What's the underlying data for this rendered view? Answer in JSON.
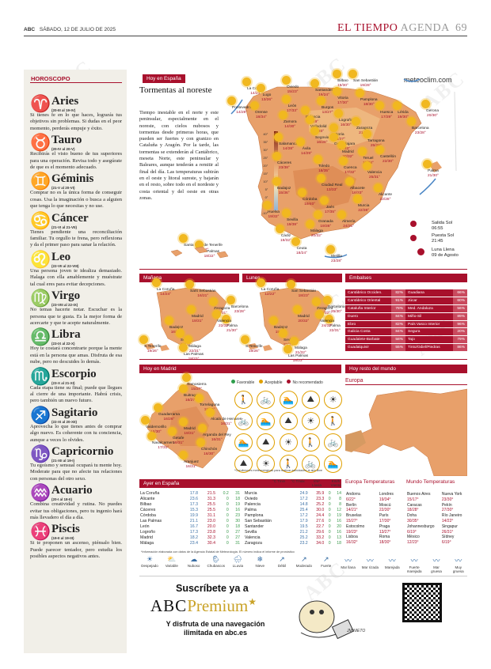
{
  "header": {
    "abc": "ABC",
    "date": "SÁBADO, 12 DE JULIO DE 2025",
    "section": "EL TIEMPO",
    "subsection": "AGENDA",
    "page": "69"
  },
  "horoscope": {
    "label": "HOROSCOPO",
    "signs": [
      {
        "symbol": "♈",
        "name": "Aries",
        "dates": "(20-III al 19-IV)",
        "text": "Si tienes fe en lo que haces, lograrás tus objetivos sin problemas. Si dudas en el peor momento, perderás empuje y éxito."
      },
      {
        "symbol": "♉",
        "name": "Tauro",
        "dates": "(20-IV al 20-V)",
        "text": "Recibirás el visto bueno de tus superiores para una operación. Revisa todo y asegúrate de que es el momento adecuado."
      },
      {
        "symbol": "♊",
        "name": "Géminis",
        "dates": "(21-V al 20-VI)",
        "text": "Comprar no es la única forma de conseguir cosas. Usa la imaginación o busca a alguien que tenga lo que necesitas y no use."
      },
      {
        "symbol": "♋",
        "name": "Cáncer",
        "dates": "(21-VI al 21-VII)",
        "text": "Tienes pendiente una reconciliación familiar. Tu orgullo te frena, pero reflexiona y da el primer paso para sanar la relación."
      },
      {
        "symbol": "♌",
        "name": "Leo",
        "dates": "(22-VII al 22-VIII)",
        "text": "Una persona joven te idealiza demasiado. Halaga con ella amablemente y muéstrate tal cual eres para evitar decepciones."
      },
      {
        "symbol": "♍",
        "name": "Virgo",
        "dates": "(23-VIII al 22-IX)",
        "text": "No temas hacerte notar. Escuchar es la persona que te gusta. Es la mejor forma de acercarte y que te acepte naturalmente."
      },
      {
        "symbol": "♎",
        "name": "Libra",
        "dates": "(23-IX al 22-X)",
        "text": "Hoy te costará concentrarte porque la mente está en la persona que amas. Disfruta de esa nube, pero no descuides lo demás."
      },
      {
        "symbol": "♏",
        "name": "Escorpio",
        "dates": "(23-X al 21-XI)",
        "text": "Cada etapa tiene su final; puede que llegues al cierre de una importante. Habrá crisis, pero también un nuevo futuro."
      },
      {
        "symbol": "♐",
        "name": "Sagitario",
        "dates": "(22-XI al 20-XII)",
        "text": "Aprovecha lo que tienes antes de comprar algo nuevo. Es coherente con tu conciencia, aunque a veces lo olvides."
      },
      {
        "symbol": "♑",
        "name": "Capricornio",
        "dates": "(21-XII al 19-I)",
        "text": "Tu egoísmo y sensual ocupará tu mente hoy. Moderate para que no afecte tus relaciones con personas del otro sexo."
      },
      {
        "symbol": "♒",
        "name": "Acuario",
        "dates": "(20-I al 18-II)",
        "text": "Combina creatividad y rutina. No puedes evitar tus obligaciones, pero tu ingenio hará más llevadero el día a día."
      },
      {
        "symbol": "♓",
        "name": "Piscis",
        "dates": "(19-II al 19-III)",
        "text": "Si te proponen un ascenso, piénsalo bien. Puede parecer tentador, pero estudia los posibles aspectos negativos antes."
      }
    ]
  },
  "spain": {
    "label": "Hoy en España",
    "site": "meteoclim.com",
    "title": "Tormentas al noreste",
    "body": "Tiempo inestable en el norte y este peninsular, especialmente en el noreste, con cielos nubosos y tormentas desde primeras horas, que pueden ser fuertes y con granizo en Cataluña y Aragón. Por la tarde, las tormentas se extenderán al Cantábrico, meseta Norte, este peninsular y Baleares, aunque tenderán a remitir al final del día. Las temperaturas subirán en el oeste y litoral sureste, y bajarán en el resto, sobre todo en el nordeste y costa oriental y del oeste en otras zonas.",
    "scale": [
      "40°",
      "35°",
      "30°",
      "25°",
      "20°",
      "15°",
      "10°",
      "5°",
      "0°",
      "-5°",
      "-10°"
    ],
    "cities": [
      {
        "n": "Oviedo",
        "t": "15/23°"
      },
      {
        "n": "Santander",
        "t": "16/24°"
      },
      {
        "n": "Bilbao",
        "t": "19/30°"
      },
      {
        "n": "San Sebastián",
        "t": "19/28°"
      },
      {
        "n": "La Coruña",
        "t": "14/24°"
      },
      {
        "n": "Lugo",
        "t": "13/26°"
      },
      {
        "n": "Pontevedra",
        "t": "14/29°"
      },
      {
        "n": "Orense",
        "t": "18/34°"
      },
      {
        "n": "León",
        "t": "17/33°"
      },
      {
        "n": "Burgos",
        "t": "13/27°"
      },
      {
        "n": "Vitoria",
        "t": "17/30°"
      },
      {
        "n": "Pamplona",
        "t": "18/30°"
      },
      {
        "n": "Huesca",
        "t": "17/29°"
      },
      {
        "n": "Lérida",
        "t": "19/30°"
      },
      {
        "n": "Gerona",
        "t": "20/30°"
      },
      {
        "n": "Palencia",
        "t": "14/29°"
      },
      {
        "n": "Logroño",
        "t": "16/30°"
      },
      {
        "n": "Zamora",
        "t": "14/30°"
      },
      {
        "n": "Valladolid",
        "t": "16/30°"
      },
      {
        "n": "Soria",
        "t": "15/27°"
      },
      {
        "n": "Zaragoza",
        "t": "21/31°"
      },
      {
        "n": "Barcelona",
        "t": "23/28°"
      },
      {
        "n": "Salamanca",
        "t": "14/28°"
      },
      {
        "n": "Segovia",
        "t": "16/28°"
      },
      {
        "n": "Guadalajara",
        "t": "17/33°"
      },
      {
        "n": "Tarragona",
        "t": "25/28°"
      },
      {
        "n": "Ávila",
        "t": "14/29°"
      },
      {
        "n": "Madrid",
        "t": "20/32°"
      },
      {
        "n": "Teruel",
        "t": "17/28°"
      },
      {
        "n": "Castellón",
        "t": "22/30°"
      },
      {
        "n": "Cáceres",
        "t": "23/38°"
      },
      {
        "n": "Toledo",
        "t": "18/35°"
      },
      {
        "n": "Cuenca",
        "t": "17/32°"
      },
      {
        "n": "Valencia",
        "t": "25/31°"
      },
      {
        "n": "Palma",
        "t": "21/30°"
      },
      {
        "n": "Badajoz",
        "t": "15/36°"
      },
      {
        "n": "Ciudad Real",
        "t": "13/33°"
      },
      {
        "n": "Albacete",
        "t": "16/33°"
      },
      {
        "n": "Alicante",
        "t": "22/28°"
      },
      {
        "n": "Córdoba",
        "t": "19/40°"
      },
      {
        "n": "Jaén",
        "t": "17/35°"
      },
      {
        "n": "Murcia",
        "t": "22/38°"
      },
      {
        "n": "Huelva",
        "t": "19/32°"
      },
      {
        "n": "Sevilla",
        "t": "19/39°"
      },
      {
        "n": "Granada",
        "t": "19/36°"
      },
      {
        "n": "Almería",
        "t": "24/31°"
      },
      {
        "n": "Cádiz",
        "t": "19/32°"
      },
      {
        "n": "Málaga",
        "t": "20/32°"
      },
      {
        "n": "Ceuta",
        "t": "18/24°"
      },
      {
        "n": "Melilla",
        "t": "23/28°"
      },
      {
        "n": "Santa Cruz de Tenerife",
        "t": "20/27°"
      },
      {
        "n": "Las Palmas",
        "t": "18/22°"
      }
    ],
    "sun": {
      "rise_label": "Salida Sol",
      "rise": "06:55",
      "set_label": "Puesta Sol",
      "set": "21:45",
      "moon_label": "Luna Llena",
      "moon": "09 de Agosto"
    }
  },
  "forecast": {
    "manana": {
      "label": "Mañana",
      "cities": [
        {
          "n": "La Coruña",
          "t": "14/24°"
        },
        {
          "n": "Sant Sebastián",
          "t": "16/21°"
        },
        {
          "n": "Zaragoza",
          "t": "21/31°"
        },
        {
          "n": "Barcelona",
          "t": "23/28°"
        },
        {
          "n": "Madrid",
          "t": "19/31°"
        },
        {
          "n": "Palma",
          "t": "21/30°"
        },
        {
          "n": "Valencia",
          "t": "22/32°"
        },
        {
          "n": "Badajoz",
          "t": "16/36°"
        },
        {
          "n": "Sevilla",
          "t": "18/38°"
        },
        {
          "n": "Málaga",
          "t": "22/31°"
        },
        {
          "n": "S.Tenerife",
          "t": "19/26°"
        },
        {
          "n": "Las Palmas",
          "t": "18/23°"
        }
      ]
    },
    "lunes": {
      "label": "Lunes",
      "cities": [
        {
          "n": "La Coruña",
          "t": "12/22°"
        },
        {
          "n": "San Sebastián",
          "t": "18/23°"
        },
        {
          "n": "Zaragoza",
          "t": "20/32°"
        },
        {
          "n": "Barcelona",
          "t": "25/30°"
        },
        {
          "n": "Madrid",
          "t": "20/32°"
        },
        {
          "n": "Palma",
          "t": "22/31°"
        },
        {
          "n": "Valencia",
          "t": "24/32°"
        },
        {
          "n": "Badajoz",
          "t": "15/36°"
        },
        {
          "n": "Sevilla",
          "t": "21/39°"
        },
        {
          "n": "Málaga",
          "t": "21/32°"
        },
        {
          "n": "S.Tenerife",
          "t": "19/26°"
        },
        {
          "n": "Las Palmas",
          "t": "18/23°"
        }
      ]
    }
  },
  "embalses": {
    "label": "Embalses",
    "left": [
      [
        "Cantábrico Occiden.",
        "82%"
      ],
      [
        "Cantábrico Oriental",
        "91%"
      ],
      [
        "Cataluña Interior",
        "78%"
      ],
      [
        "Duero",
        "84%"
      ],
      [
        "Ebro",
        "82%"
      ],
      [
        "Galicia Costa",
        "84%"
      ],
      [
        "Guadalete-Barbate",
        "58%"
      ],
      [
        "Guadalquivir",
        "55%"
      ]
    ],
    "right": [
      [
        "Guadiana",
        "66%"
      ],
      [
        "Júcar",
        "60%"
      ],
      [
        "Med. Andaluza",
        "56%"
      ],
      [
        "Miño-Sil",
        "89%"
      ],
      [
        "País Vasco Interior",
        "96%"
      ],
      [
        "Segura",
        "20%"
      ],
      [
        "Tajo",
        "79%"
      ],
      [
        "Tinto/Odiel/Piedras",
        "86%"
      ]
    ]
  },
  "madrid": {
    "label": "Hoy en Madrid",
    "legend": [
      "Favorable",
      "Aceptable",
      "No recomendado"
    ],
    "cities": [
      {
        "n": "Somosierra",
        "t": "15/27°"
      },
      {
        "n": "Buitrago",
        "t": "16/27°"
      },
      {
        "n": "Torrelaguna",
        "t": "19/30°"
      },
      {
        "n": "Guadarrama",
        "t": "16/26°"
      },
      {
        "n": "Alcalá de Henares",
        "t": "16/31°"
      },
      {
        "n": "Valdemorillo",
        "t": "16/30°"
      },
      {
        "n": "Madrid",
        "t": "19/31°"
      },
      {
        "n": "Getafe",
        "t": "19/31°"
      },
      {
        "n": "Arganda del Rey",
        "t": "16/31°"
      },
      {
        "n": "Navalcarnero",
        "t": "17/31°"
      },
      {
        "n": "Chinchón",
        "t": "16/30°"
      },
      {
        "n": "Aranjuez",
        "t": "16/31°"
      }
    ],
    "note": "*Condiciones meteorológicas para realizar actividades al aire libre"
  },
  "world": {
    "label": "Hoy resto del mundo",
    "region": "Europa"
  },
  "ayer": {
    "label": "Ayer en España",
    "head": [
      "°C Tmin",
      "°C Tmáx",
      "l/m² Lluvia",
      "Km/h Viento"
    ],
    "left": [
      [
        "La Coruña",
        "17.8",
        "21.5",
        "0.2",
        "31"
      ],
      [
        "Alicante",
        "23.6",
        "31.3",
        "0",
        "18"
      ],
      [
        "Bilbao",
        "17.3",
        "25.5",
        "0",
        "19"
      ],
      [
        "Cáceres",
        "15.3",
        "25.5",
        "0",
        "16"
      ],
      [
        "Córdoba",
        "19.9",
        "31.1",
        "0",
        "23"
      ],
      [
        "Las Palmas",
        "21.1",
        "23.0",
        "0",
        "30"
      ],
      [
        "León",
        "16.7",
        "20.0",
        "0",
        "18"
      ],
      [
        "Logroño",
        "17.3",
        "23.8",
        "0",
        "27"
      ],
      [
        "Madrid",
        "18.2",
        "32.3",
        "0",
        "27"
      ],
      [
        "Málaga",
        "23.4",
        "30.4",
        "0",
        "31"
      ]
    ],
    "right": [
      [
        "Murcia",
        "24.9",
        "35.9",
        "0",
        "14"
      ],
      [
        "Oviedo",
        "17.2",
        "23.3",
        "0",
        "8"
      ],
      [
        "Palencia",
        "14.8",
        "25.2",
        "0",
        "8"
      ],
      [
        "Palma",
        "25.4",
        "30.0",
        "0",
        "12"
      ],
      [
        "Pamplona",
        "17.2",
        "24.4",
        "0",
        "19"
      ],
      [
        "San Sebastián",
        "17.9",
        "27.6",
        "0",
        "16"
      ],
      [
        "Santander",
        "19.5",
        "22.7",
        "0",
        "20"
      ],
      [
        "Sevilla",
        "21.2",
        "29.6",
        "0",
        "16"
      ],
      [
        "Valencia",
        "25.2",
        "33.2",
        "0",
        "13"
      ],
      [
        "Zaragoza",
        "23.2",
        "34.0",
        "0",
        "18"
      ]
    ],
    "source": "*Información elaborada con datos de la Agencia Estatal de Meteorología. El número indica el informe de pronóstico",
    "icons": [
      "Despejado",
      "Variable",
      "Nuboso",
      "Chubascos",
      "LLuvia",
      "Nieve",
      "Débil",
      "Moderado",
      "Fuerte",
      "Mar llana",
      "Mar rizada",
      "Marejada",
      "Fuerte marejada",
      "Mar gruesa",
      "Muy gruesa"
    ]
  },
  "europa": {
    "title": "Europa Temperaturas",
    "rows": [
      [
        "Andorra",
        "6/22°",
        "Londres",
        "19/34°"
      ],
      [
        "Berlín",
        "14/21°",
        "Moscú",
        "22/30°"
      ],
      [
        "Bruselas",
        "15/27°",
        "París",
        "17/30°"
      ],
      [
        "Estocolmo",
        "19/23°",
        "Praga",
        "13/27°"
      ],
      [
        "Lisboa",
        "16/32°",
        "Roma",
        "18/30°"
      ]
    ]
  },
  "mundo": {
    "title": "Mundo Temperaturas",
    "rows": [
      [
        "Buenos Aires",
        "15/17°",
        "Nueva York",
        "23/30°"
      ],
      [
        "Caracas",
        "18/28°",
        "Pekín",
        "27/30°"
      ],
      [
        "Doha",
        "30/35°",
        "Río Janeiro",
        "14/22°"
      ],
      [
        "Johannesburgo",
        "6/19°",
        "Singapur",
        "26/31°"
      ],
      [
        "México",
        "12/23°",
        "Sídney",
        "6/19°"
      ]
    ]
  },
  "ad": {
    "line1": "Suscríbete ya a",
    "abc": "ABC",
    "premium": "Premium",
    "line2": "Y disfruta de una navegación",
    "line3": "ilimitada en abc.es",
    "signature": "JM NIETO"
  }
}
